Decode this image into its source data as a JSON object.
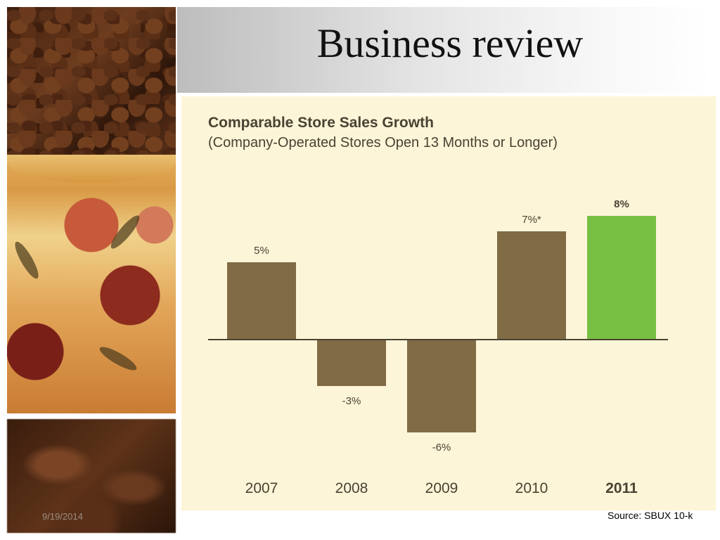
{
  "slide": {
    "title": "Business review",
    "date": "9/19/2014",
    "source": "Source: SBUX 10-k"
  },
  "colors": {
    "bar_default": "#806b45",
    "bar_highlight": "#78c043",
    "panel_bg": "#fdf5d8",
    "axis": "#4a4232"
  },
  "chart_data": {
    "type": "bar",
    "title": "Comparable Store Sales Growth",
    "subtitle": "(Company-Operated Stores Open 13 Months or Longer)",
    "categories": [
      "2007",
      "2008",
      "2009",
      "2010",
      "2011"
    ],
    "values": [
      5,
      -3,
      -6,
      7,
      8
    ],
    "value_labels": [
      "5%",
      "-3%",
      "-6%",
      "7%*",
      "8%"
    ],
    "highlight_category": "2011",
    "ylim": [
      -6,
      8
    ],
    "grid": false,
    "xlabel": "",
    "ylabel": ""
  }
}
